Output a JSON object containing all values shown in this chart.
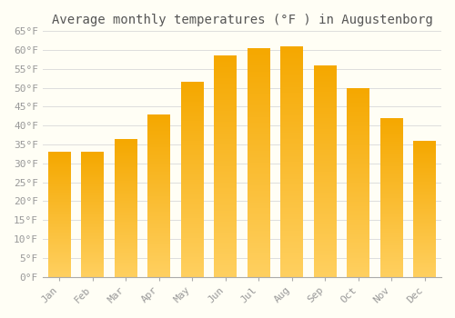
{
  "title": "Average monthly temperatures (°F ) in Augustenborg",
  "months": [
    "Jan",
    "Feb",
    "Mar",
    "Apr",
    "May",
    "Jun",
    "Jul",
    "Aug",
    "Sep",
    "Oct",
    "Nov",
    "Dec"
  ],
  "values": [
    33,
    33,
    36.5,
    43,
    51.5,
    58.5,
    60.5,
    61,
    56,
    50,
    42,
    36
  ],
  "bar_color_dark": "#F5A800",
  "bar_color_light": "#FFD060",
  "background_color": "#FFFEF5",
  "grid_color": "#DDDDDD",
  "ylim": [
    0,
    65
  ],
  "yticks": [
    0,
    5,
    10,
    15,
    20,
    25,
    30,
    35,
    40,
    45,
    50,
    55,
    60,
    65
  ],
  "ytick_labels": [
    "0°F",
    "5°F",
    "10°F",
    "15°F",
    "20°F",
    "25°F",
    "30°F",
    "35°F",
    "40°F",
    "45°F",
    "50°F",
    "55°F",
    "60°F",
    "65°F"
  ],
  "title_fontsize": 10,
  "tick_fontsize": 8,
  "title_font": "monospace",
  "tick_font": "monospace",
  "tick_color": "#999999",
  "spine_color": "#AAAAAA"
}
